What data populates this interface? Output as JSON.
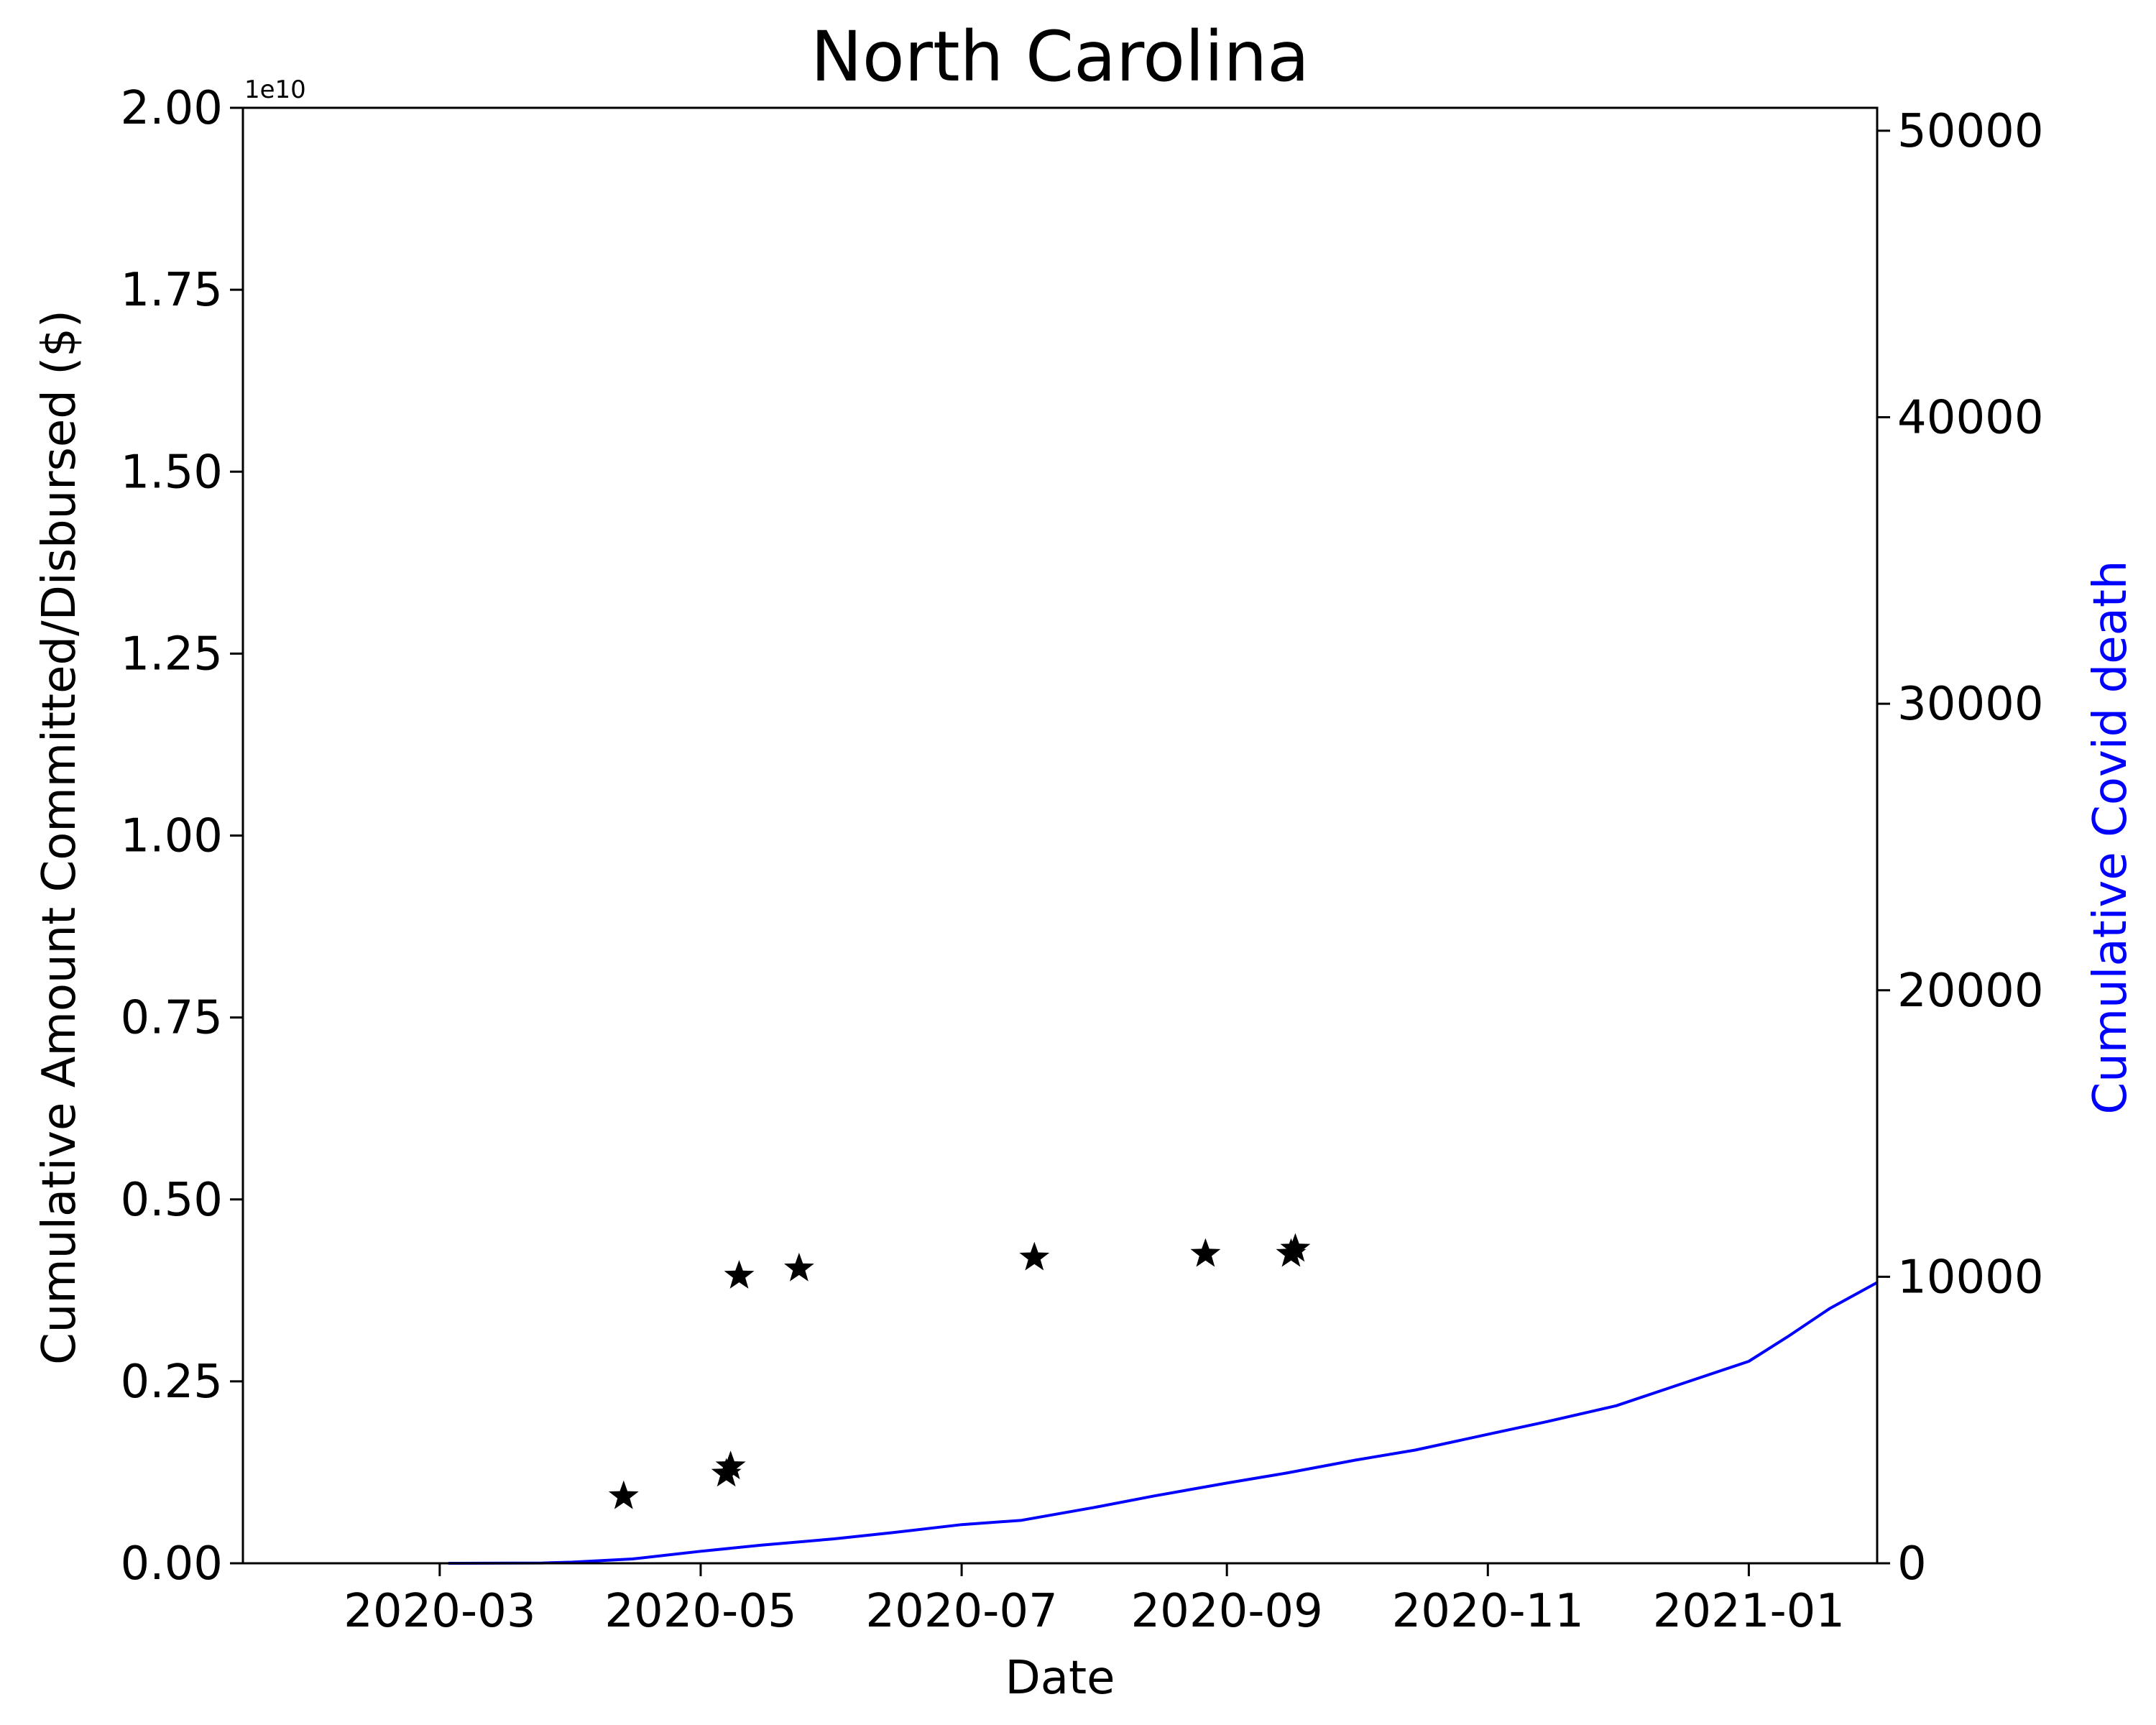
{
  "chart_data": {
    "type": "scatter",
    "title": "North Carolina",
    "xlabel": "Date",
    "ylabel_left": "Cumulative Amount Committed/Disbursed ($)",
    "ylabel_right": "Cumulative Covid death",
    "left_axis_offset_label": "1e10",
    "xlim": [
      "2020-01-15",
      "2021-01-31"
    ],
    "ylim_left": [
      0,
      2.0
    ],
    "ylim_right": [
      0,
      50800
    ],
    "x_ticks": [
      "2020-03",
      "2020-05",
      "2020-07",
      "2020-09",
      "2020-11",
      "2021-01"
    ],
    "y_left_ticks": [
      "0.00",
      "0.25",
      "0.50",
      "0.75",
      "1.00",
      "1.25",
      "1.50",
      "1.75",
      "2.00"
    ],
    "y_right_ticks": [
      "0",
      "10000",
      "20000",
      "30000",
      "40000",
      "50000"
    ],
    "grid": false,
    "colors": {
      "stars": "#000000",
      "deaths_line": "#0000ff",
      "right_label": "#0000ff"
    },
    "series": [
      {
        "axis": "left",
        "marker": "star",
        "points": [
          {
            "x": "2020-04-13",
            "y": 0.092
          },
          {
            "x": "2020-05-07",
            "y": 0.123
          },
          {
            "x": "2020-05-08",
            "y": 0.133
          },
          {
            "x": "2020-05-10",
            "y": 0.395
          },
          {
            "x": "2020-05-24",
            "y": 0.405
          },
          {
            "x": "2020-07-18",
            "y": 0.42
          },
          {
            "x": "2020-08-27",
            "y": 0.425
          },
          {
            "x": "2020-09-16",
            "y": 0.425
          },
          {
            "x": "2020-09-17",
            "y": 0.432
          }
        ]
      },
      {
        "axis": "right",
        "marker": "line",
        "points": [
          {
            "x": "2020-03-03",
            "y": 0
          },
          {
            "x": "2020-03-25",
            "y": 10
          },
          {
            "x": "2020-04-01",
            "y": 40
          },
          {
            "x": "2020-04-15",
            "y": 150
          },
          {
            "x": "2020-05-01",
            "y": 420
          },
          {
            "x": "2020-05-15",
            "y": 630
          },
          {
            "x": "2020-06-01",
            "y": 850
          },
          {
            "x": "2020-06-15",
            "y": 1070
          },
          {
            "x": "2020-07-01",
            "y": 1350
          },
          {
            "x": "2020-07-15",
            "y": 1500
          },
          {
            "x": "2020-08-01",
            "y": 1950
          },
          {
            "x": "2020-08-15",
            "y": 2350
          },
          {
            "x": "2020-09-01",
            "y": 2800
          },
          {
            "x": "2020-09-15",
            "y": 3150
          },
          {
            "x": "2020-10-01",
            "y": 3600
          },
          {
            "x": "2020-10-15",
            "y": 3950
          },
          {
            "x": "2020-11-01",
            "y": 4500
          },
          {
            "x": "2020-11-15",
            "y": 4950
          },
          {
            "x": "2020-12-01",
            "y": 5500
          },
          {
            "x": "2020-12-15",
            "y": 6200
          },
          {
            "x": "2021-01-01",
            "y": 7050
          },
          {
            "x": "2021-01-10",
            "y": 7900
          },
          {
            "x": "2021-01-20",
            "y": 8900
          },
          {
            "x": "2021-01-31",
            "y": 9800
          }
        ]
      }
    ]
  }
}
